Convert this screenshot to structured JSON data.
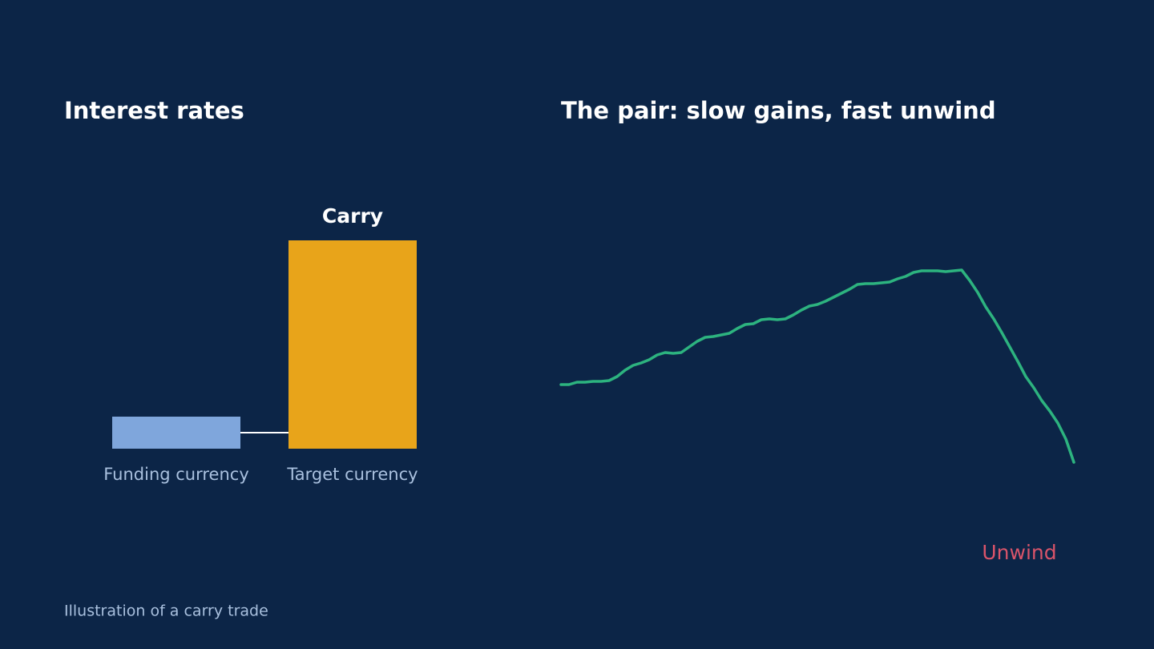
{
  "caption": "Illustration of a carry trade",
  "chart_data": [
    {
      "type": "bar",
      "title": "Interest rates",
      "categories": [
        "Funding currency",
        "Target currency"
      ],
      "values": [
        1,
        6.5
      ],
      "colors": [
        "#7fa6dc",
        "#e8a41a"
      ],
      "ylim": [
        0,
        6.5
      ],
      "annotations": [
        "Carry"
      ]
    },
    {
      "type": "line",
      "title": "The pair: slow gains, fast unwind",
      "x": [
        0,
        1,
        2,
        3,
        4,
        5,
        6,
        7,
        8,
        9,
        10,
        11,
        12,
        13,
        14,
        15,
        16,
        17,
        18,
        19,
        20,
        21,
        22,
        23,
        24,
        25,
        26,
        27,
        28,
        29,
        30,
        31,
        32,
        33,
        34,
        35,
        36,
        37,
        38,
        39,
        40,
        41,
        42,
        43,
        44,
        45,
        46,
        47,
        48,
        49,
        50,
        51,
        52,
        53,
        54,
        55,
        56,
        57,
        58,
        59,
        60,
        61,
        62,
        63,
        64
      ],
      "values": [
        120,
        120,
        123,
        123,
        124,
        124,
        125,
        130,
        138,
        144,
        147,
        151,
        157,
        160,
        159,
        160,
        167,
        174,
        179,
        180,
        182,
        184,
        190,
        195,
        196,
        201,
        202,
        201,
        202,
        207,
        213,
        218,
        220,
        224,
        229,
        234,
        239,
        245,
        246,
        246,
        247,
        248,
        252,
        255,
        260,
        262,
        262,
        262,
        261,
        262,
        263,
        250,
        235,
        217,
        202,
        185,
        167,
        149,
        130,
        116,
        100,
        87,
        72,
        52,
        23
      ],
      "color": "#2db37f",
      "xlim": [
        0,
        64
      ],
      "ylim": [
        0,
        300
      ],
      "annotations": [
        "Unwind"
      ]
    }
  ]
}
